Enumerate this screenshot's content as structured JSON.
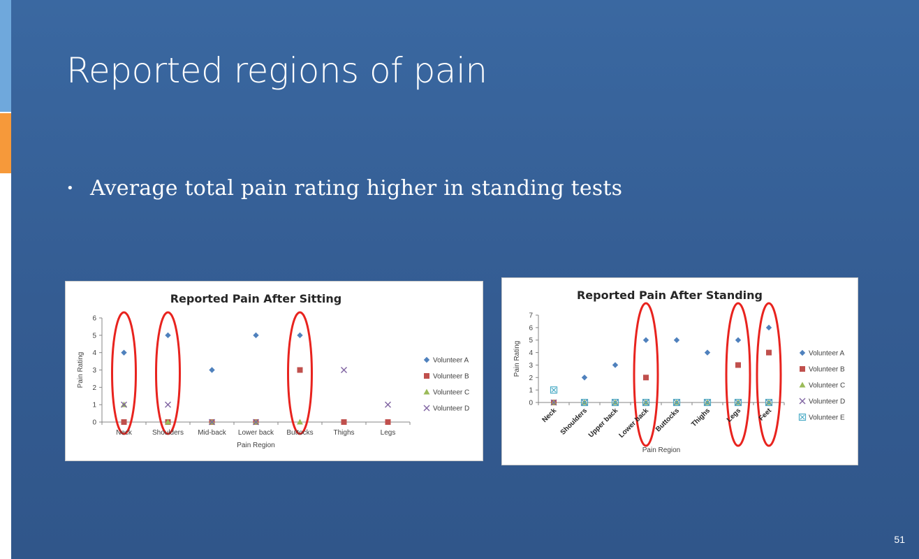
{
  "slide": {
    "title": "Reported regions of pain",
    "bullet": "Average total pain rating higher in standing tests",
    "page_number": "51"
  },
  "colors": {
    "background": "#345c92",
    "volunteer_a": "#4f81bd",
    "volunteer_b": "#c0504d",
    "volunteer_c": "#9bbb59",
    "volunteer_d": "#8064a2",
    "volunteer_e": "#4bacc6",
    "highlight_ellipse": "#e8231e"
  },
  "chart_data": [
    {
      "type": "scatter",
      "title": "Reported Pain After Sitting",
      "xlabel": "Pain Region",
      "ylabel": "Pain Rating",
      "categories": [
        "Neck",
        "Shoulders",
        "Mid-back",
        "Lower back",
        "Buttocks",
        "Thighs",
        "Legs"
      ],
      "ylim": [
        0,
        6
      ],
      "yticks": [
        0,
        1,
        2,
        3,
        4,
        5,
        6
      ],
      "grid": false,
      "legend": "right",
      "series": [
        {
          "name": "Volunteer A",
          "marker": "diamond",
          "values": [
            4,
            5,
            3,
            5,
            5,
            null,
            null
          ]
        },
        {
          "name": "Volunteer B",
          "marker": "square",
          "values": [
            0,
            0,
            0,
            0,
            3,
            0,
            0
          ]
        },
        {
          "name": "Volunteer C",
          "marker": "triangle",
          "values": [
            1,
            0,
            0,
            0,
            0,
            null,
            null
          ]
        },
        {
          "name": "Volunteer D",
          "marker": "x",
          "values": [
            1,
            1,
            0,
            0,
            null,
            3,
            1
          ]
        }
      ],
      "highlighted_categories": [
        "Neck",
        "Shoulders",
        "Buttocks"
      ]
    },
    {
      "type": "scatter",
      "title": "Reported Pain After Standing",
      "xlabel": "Pain Region",
      "ylabel": "Pain Rating",
      "categories": [
        "Neck",
        "Shoulders",
        "Upper back",
        "Lower back",
        "Buttocks",
        "Thighs",
        "Legs",
        "Feet"
      ],
      "ylim": [
        0,
        7
      ],
      "yticks": [
        0,
        1,
        2,
        3,
        4,
        5,
        6,
        7
      ],
      "grid": false,
      "legend": "right",
      "series": [
        {
          "name": "Volunteer A",
          "marker": "diamond",
          "values": [
            0,
            2,
            3,
            5,
            5,
            4,
            5,
            6
          ]
        },
        {
          "name": "Volunteer B",
          "marker": "square",
          "values": [
            0,
            null,
            null,
            2,
            null,
            null,
            3,
            4
          ]
        },
        {
          "name": "Volunteer C",
          "marker": "triangle",
          "values": [
            0,
            0,
            0,
            0,
            0,
            0,
            0,
            0
          ]
        },
        {
          "name": "Volunteer D",
          "marker": "x",
          "values": [
            0,
            0,
            0,
            0,
            0,
            0,
            0,
            0
          ]
        },
        {
          "name": "Volunteer E",
          "marker": "boxed-x",
          "values": [
            1,
            0,
            0,
            0,
            0,
            0,
            0,
            0
          ]
        }
      ],
      "highlighted_categories": [
        "Lower back",
        "Legs",
        "Feet"
      ]
    }
  ]
}
